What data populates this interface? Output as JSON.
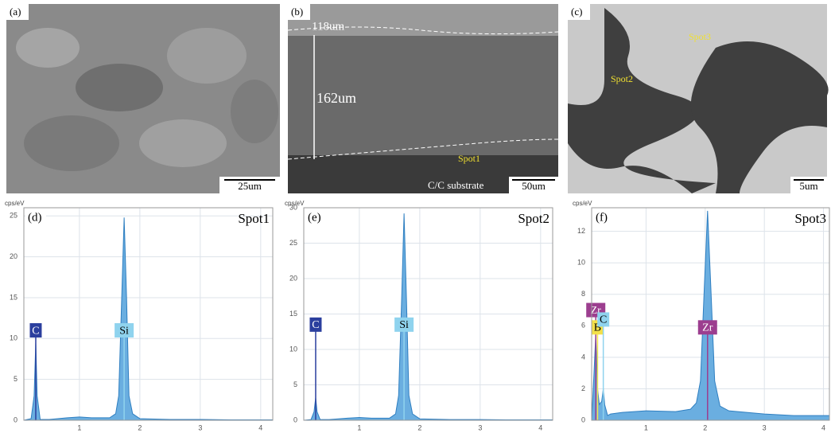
{
  "images": [
    {
      "label": "(a)",
      "scale_bar": "25um"
    },
    {
      "label": "(b)",
      "annotations": [
        "118um",
        "162um",
        "Spot1",
        "C/C substrate"
      ],
      "scale_bar": "50um"
    },
    {
      "label": "(c)",
      "annotations": [
        "Spot2",
        "Spot3"
      ],
      "scale_bar": "5um"
    }
  ],
  "chart_data": [
    {
      "type": "area",
      "panel_label": "(d)",
      "title": "Spot1",
      "y_label": "cps/eV",
      "color": "#6aaee0",
      "line_color": "#2f7fc1",
      "x": [
        0.08,
        0.2,
        0.25,
        0.277,
        0.3,
        0.35,
        0.5,
        0.8,
        1.0,
        1.2,
        1.5,
        1.6,
        1.65,
        1.7,
        1.74,
        1.78,
        1.82,
        1.88,
        2.0,
        2.5,
        3.0,
        3.5,
        4.0,
        4.2
      ],
      "values": [
        0,
        0.2,
        3,
        9.5,
        3,
        0.1,
        0.1,
        0.3,
        0.4,
        0.3,
        0.3,
        0.8,
        3,
        15,
        24.8,
        15,
        3,
        0.8,
        0.2,
        0.1,
        0.1,
        0.05,
        0.05,
        0.05
      ],
      "xlim": [
        0.08,
        4.2
      ],
      "ylim": [
        0,
        26
      ],
      "xticks": [
        1,
        2,
        3,
        4
      ],
      "yticks": [
        0,
        5,
        10,
        15,
        20,
        25
      ],
      "grid": true,
      "annotations": [
        {
          "text": "C",
          "x": 0.277,
          "y": 11,
          "color": "#2b3f9e"
        },
        {
          "text": "Si",
          "x": 1.74,
          "y": 11,
          "color": "#8fd3ee"
        }
      ]
    },
    {
      "type": "area",
      "panel_label": "(e)",
      "title": "Spot2",
      "y_label": "cps/eV",
      "color": "#6aaee0",
      "line_color": "#2f7fc1",
      "x": [
        0.08,
        0.2,
        0.25,
        0.277,
        0.3,
        0.35,
        0.5,
        0.8,
        1.0,
        1.2,
        1.5,
        1.6,
        1.65,
        1.7,
        1.74,
        1.78,
        1.82,
        1.88,
        2.0,
        2.5,
        3.0,
        3.5,
        4.0,
        4.2
      ],
      "values": [
        0,
        0.1,
        1.2,
        3.2,
        1.2,
        0.1,
        0.1,
        0.3,
        0.4,
        0.3,
        0.3,
        0.9,
        3.5,
        17,
        29.2,
        17,
        3.5,
        0.9,
        0.2,
        0.1,
        0.1,
        0.05,
        0.05,
        0.05
      ],
      "xlim": [
        0.08,
        4.2
      ],
      "ylim": [
        0,
        30
      ],
      "xticks": [
        1,
        2,
        3,
        4
      ],
      "yticks": [
        0,
        5,
        10,
        15,
        20,
        25,
        30
      ],
      "grid": true,
      "annotations": [
        {
          "text": "C",
          "x": 0.277,
          "y": 13.5,
          "color": "#2b3f9e"
        },
        {
          "text": "Si",
          "x": 1.74,
          "y": 13.5,
          "color": "#8fd3ee"
        }
      ]
    },
    {
      "type": "area",
      "panel_label": "(f)",
      "title": "Spot3",
      "y_label": "cps/eV",
      "color": "#6aaee0",
      "line_color": "#2f7fc1",
      "x": [
        0.08,
        0.12,
        0.15,
        0.18,
        0.21,
        0.25,
        0.277,
        0.3,
        0.35,
        0.4,
        0.6,
        1.0,
        1.5,
        1.75,
        1.85,
        1.92,
        1.98,
        2.04,
        2.1,
        2.16,
        2.25,
        2.4,
        3.0,
        3.5,
        4.0,
        4.1
      ],
      "values": [
        0,
        3,
        5.5,
        2,
        1,
        1.2,
        2,
        1,
        0.3,
        0.4,
        0.5,
        0.6,
        0.55,
        0.7,
        1.1,
        2.5,
        8,
        13.3,
        8,
        2.5,
        0.9,
        0.6,
        0.4,
        0.3,
        0.3,
        0.3
      ],
      "xlim": [
        0.08,
        4.1
      ],
      "ylim": [
        0,
        13.5
      ],
      "xticks": [
        1,
        2,
        3,
        4
      ],
      "yticks": [
        0,
        2,
        4,
        6,
        8,
        10,
        12
      ],
      "grid": true,
      "annotations": [
        {
          "text": "Zr",
          "x": 0.15,
          "y": 7.0,
          "color": "#9c3e8f"
        },
        {
          "text": "B",
          "x": 0.18,
          "y": 5.9,
          "color": "#f3e04a"
        },
        {
          "text": "C",
          "x": 0.277,
          "y": 6.4,
          "color": "#8fd3ee"
        },
        {
          "text": "Zr",
          "x": 2.04,
          "y": 5.9,
          "color": "#9c3e8f"
        }
      ]
    }
  ]
}
